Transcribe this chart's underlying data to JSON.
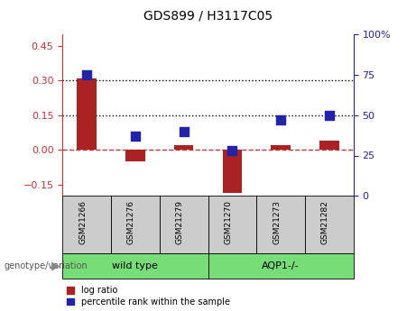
{
  "title": "GDS899 / H3117C05",
  "samples": [
    "GSM21266",
    "GSM21276",
    "GSM21279",
    "GSM21270",
    "GSM21273",
    "GSM21282"
  ],
  "log_ratio": [
    0.31,
    -0.05,
    0.02,
    -0.185,
    0.02,
    0.04
  ],
  "percentile_rank": [
    75,
    37,
    40,
    28,
    47,
    50
  ],
  "bar_color": "#AA2222",
  "dot_color": "#2222AA",
  "ylim_left": [
    -0.2,
    0.5
  ],
  "ylim_right": [
    0,
    100
  ],
  "yticks_left": [
    -0.15,
    0.0,
    0.15,
    0.3,
    0.45
  ],
  "yticks_right": [
    0,
    25,
    50,
    75,
    100
  ],
  "hlines": [
    0.15,
    0.3
  ],
  "hline_zero_color": "#CC3333",
  "hline_dotted_color": "#000000",
  "group1_label": "wild type",
  "group2_label": "AQP1-/-",
  "group_color": "#77DD77",
  "genotype_label": "genotype/variation",
  "legend_log_ratio": "log ratio",
  "legend_percentile": "percentile rank within the sample",
  "bg_color": "#ffffff",
  "tick_label_color_left": "#CC3333",
  "tick_label_color_right": "#2222AA",
  "bar_width": 0.4,
  "dot_size": 45,
  "sample_box_color": "#CCCCCC"
}
